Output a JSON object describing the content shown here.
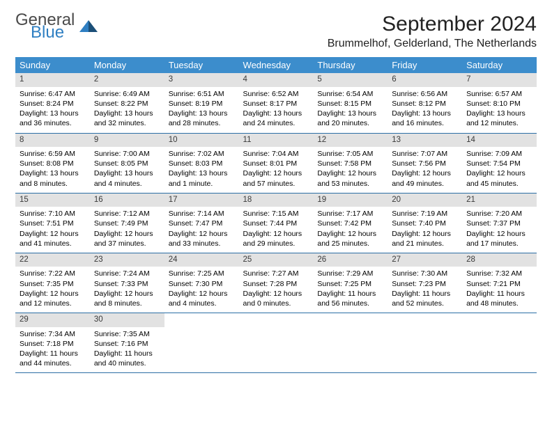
{
  "logo": {
    "general": "General",
    "blue": "Blue"
  },
  "header": {
    "month_title": "September 2024",
    "location": "Brummelhof, Gelderland, The Netherlands"
  },
  "colors": {
    "header_bg": "#3c8dcc",
    "header_text": "#ffffff",
    "daynum_bg": "#e2e2e2",
    "row_border": "#2b6ea5",
    "logo_blue": "#2f7fc2",
    "logo_gray": "#4a4a4a"
  },
  "weekdays": [
    "Sunday",
    "Monday",
    "Tuesday",
    "Wednesday",
    "Thursday",
    "Friday",
    "Saturday"
  ],
  "weeks": [
    [
      {
        "day": "1",
        "sunrise": "Sunrise: 6:47 AM",
        "sunset": "Sunset: 8:24 PM",
        "daylight": "Daylight: 13 hours and 36 minutes."
      },
      {
        "day": "2",
        "sunrise": "Sunrise: 6:49 AM",
        "sunset": "Sunset: 8:22 PM",
        "daylight": "Daylight: 13 hours and 32 minutes."
      },
      {
        "day": "3",
        "sunrise": "Sunrise: 6:51 AM",
        "sunset": "Sunset: 8:19 PM",
        "daylight": "Daylight: 13 hours and 28 minutes."
      },
      {
        "day": "4",
        "sunrise": "Sunrise: 6:52 AM",
        "sunset": "Sunset: 8:17 PM",
        "daylight": "Daylight: 13 hours and 24 minutes."
      },
      {
        "day": "5",
        "sunrise": "Sunrise: 6:54 AM",
        "sunset": "Sunset: 8:15 PM",
        "daylight": "Daylight: 13 hours and 20 minutes."
      },
      {
        "day": "6",
        "sunrise": "Sunrise: 6:56 AM",
        "sunset": "Sunset: 8:12 PM",
        "daylight": "Daylight: 13 hours and 16 minutes."
      },
      {
        "day": "7",
        "sunrise": "Sunrise: 6:57 AM",
        "sunset": "Sunset: 8:10 PM",
        "daylight": "Daylight: 13 hours and 12 minutes."
      }
    ],
    [
      {
        "day": "8",
        "sunrise": "Sunrise: 6:59 AM",
        "sunset": "Sunset: 8:08 PM",
        "daylight": "Daylight: 13 hours and 8 minutes."
      },
      {
        "day": "9",
        "sunrise": "Sunrise: 7:00 AM",
        "sunset": "Sunset: 8:05 PM",
        "daylight": "Daylight: 13 hours and 4 minutes."
      },
      {
        "day": "10",
        "sunrise": "Sunrise: 7:02 AM",
        "sunset": "Sunset: 8:03 PM",
        "daylight": "Daylight: 13 hours and 1 minute."
      },
      {
        "day": "11",
        "sunrise": "Sunrise: 7:04 AM",
        "sunset": "Sunset: 8:01 PM",
        "daylight": "Daylight: 12 hours and 57 minutes."
      },
      {
        "day": "12",
        "sunrise": "Sunrise: 7:05 AM",
        "sunset": "Sunset: 7:58 PM",
        "daylight": "Daylight: 12 hours and 53 minutes."
      },
      {
        "day": "13",
        "sunrise": "Sunrise: 7:07 AM",
        "sunset": "Sunset: 7:56 PM",
        "daylight": "Daylight: 12 hours and 49 minutes."
      },
      {
        "day": "14",
        "sunrise": "Sunrise: 7:09 AM",
        "sunset": "Sunset: 7:54 PM",
        "daylight": "Daylight: 12 hours and 45 minutes."
      }
    ],
    [
      {
        "day": "15",
        "sunrise": "Sunrise: 7:10 AM",
        "sunset": "Sunset: 7:51 PM",
        "daylight": "Daylight: 12 hours and 41 minutes."
      },
      {
        "day": "16",
        "sunrise": "Sunrise: 7:12 AM",
        "sunset": "Sunset: 7:49 PM",
        "daylight": "Daylight: 12 hours and 37 minutes."
      },
      {
        "day": "17",
        "sunrise": "Sunrise: 7:14 AM",
        "sunset": "Sunset: 7:47 PM",
        "daylight": "Daylight: 12 hours and 33 minutes."
      },
      {
        "day": "18",
        "sunrise": "Sunrise: 7:15 AM",
        "sunset": "Sunset: 7:44 PM",
        "daylight": "Daylight: 12 hours and 29 minutes."
      },
      {
        "day": "19",
        "sunrise": "Sunrise: 7:17 AM",
        "sunset": "Sunset: 7:42 PM",
        "daylight": "Daylight: 12 hours and 25 minutes."
      },
      {
        "day": "20",
        "sunrise": "Sunrise: 7:19 AM",
        "sunset": "Sunset: 7:40 PM",
        "daylight": "Daylight: 12 hours and 21 minutes."
      },
      {
        "day": "21",
        "sunrise": "Sunrise: 7:20 AM",
        "sunset": "Sunset: 7:37 PM",
        "daylight": "Daylight: 12 hours and 17 minutes."
      }
    ],
    [
      {
        "day": "22",
        "sunrise": "Sunrise: 7:22 AM",
        "sunset": "Sunset: 7:35 PM",
        "daylight": "Daylight: 12 hours and 12 minutes."
      },
      {
        "day": "23",
        "sunrise": "Sunrise: 7:24 AM",
        "sunset": "Sunset: 7:33 PM",
        "daylight": "Daylight: 12 hours and 8 minutes."
      },
      {
        "day": "24",
        "sunrise": "Sunrise: 7:25 AM",
        "sunset": "Sunset: 7:30 PM",
        "daylight": "Daylight: 12 hours and 4 minutes."
      },
      {
        "day": "25",
        "sunrise": "Sunrise: 7:27 AM",
        "sunset": "Sunset: 7:28 PM",
        "daylight": "Daylight: 12 hours and 0 minutes."
      },
      {
        "day": "26",
        "sunrise": "Sunrise: 7:29 AM",
        "sunset": "Sunset: 7:25 PM",
        "daylight": "Daylight: 11 hours and 56 minutes."
      },
      {
        "day": "27",
        "sunrise": "Sunrise: 7:30 AM",
        "sunset": "Sunset: 7:23 PM",
        "daylight": "Daylight: 11 hours and 52 minutes."
      },
      {
        "day": "28",
        "sunrise": "Sunrise: 7:32 AM",
        "sunset": "Sunset: 7:21 PM",
        "daylight": "Daylight: 11 hours and 48 minutes."
      }
    ],
    [
      {
        "day": "29",
        "sunrise": "Sunrise: 7:34 AM",
        "sunset": "Sunset: 7:18 PM",
        "daylight": "Daylight: 11 hours and 44 minutes."
      },
      {
        "day": "30",
        "sunrise": "Sunrise: 7:35 AM",
        "sunset": "Sunset: 7:16 PM",
        "daylight": "Daylight: 11 hours and 40 minutes."
      },
      null,
      null,
      null,
      null,
      null
    ]
  ]
}
